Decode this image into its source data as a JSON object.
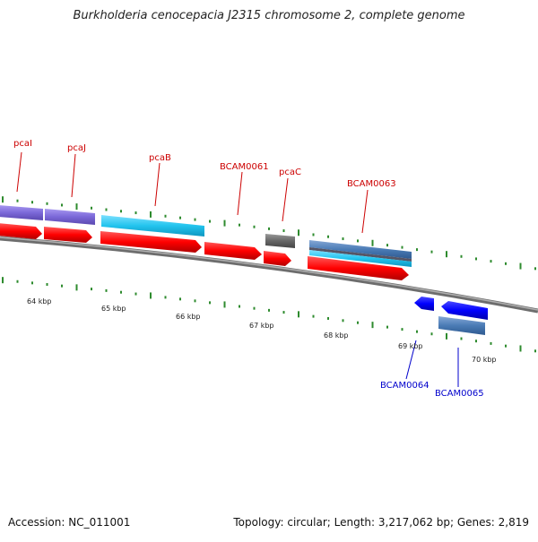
{
  "title": "Burkholderia cenocepacia J2315 chromosome 2, complete genome",
  "footer": {
    "accession": "Accession: NC_011001",
    "summary": "Topology: circular; Length: 3,217,062 bp; Genes: 2,819"
  },
  "scale": {
    "tick_labels": [
      "64 kbp",
      "65 kbp",
      "66 kbp",
      "67 kbp",
      "68 kbp",
      "69 kbp",
      "70 kbp"
    ]
  },
  "genes_forward": [
    {
      "label": "pcaI",
      "color": "#cc0000"
    },
    {
      "label": "pcaJ",
      "color": "#cc0000"
    },
    {
      "label": "pcaB",
      "color": "#cc0000"
    },
    {
      "label": "BCAM0061",
      "color": "#cc0000"
    },
    {
      "label": "pcaC",
      "color": "#cc0000"
    },
    {
      "label": "BCAM0063",
      "color": "#cc0000"
    }
  ],
  "genes_reverse": [
    {
      "label": "BCAM0064",
      "color": "#0000cc"
    },
    {
      "label": "BCAM0065",
      "color": "#0000cc"
    }
  ],
  "colors": {
    "cds_forward": "#ff0000",
    "cds_reverse": "#0000ff",
    "backbone": "#888888",
    "tick": "#2e8b2e",
    "gene_purple": "#7b68d8",
    "gene_cyan": "#22c4ee",
    "gene_gray": "#666666",
    "gene_steel": "#4a7bb5"
  }
}
